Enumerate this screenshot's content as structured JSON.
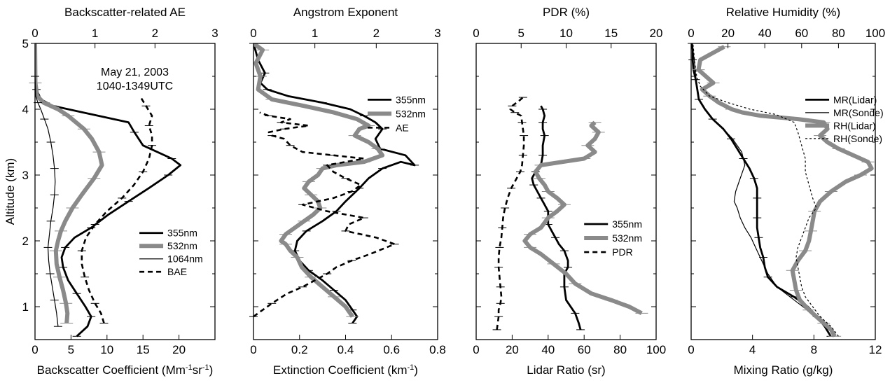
{
  "chart_data": [
    {
      "type": "line",
      "panel": "backscatter",
      "ylabel": "Altitude (km)",
      "ylim": [
        0.5,
        5
      ],
      "yticks": [
        1,
        2,
        3,
        4,
        5
      ],
      "bottom_axis": {
        "label_main": "Backscatter Coefficient (Mm",
        "sup1": "-1",
        "mid": "sr",
        "sup2": "-1",
        "close": ")",
        "lim": [
          0,
          25
        ],
        "ticks": [
          0,
          5,
          10,
          15,
          20
        ]
      },
      "top_axis": {
        "label": "Backscatter-related AE",
        "lim": [
          0,
          3
        ],
        "ticks": [
          0,
          1,
          2,
          3
        ]
      },
      "annotations": [
        "May 21, 2003",
        "1040-1349UTC"
      ],
      "legend_position": "lower-right",
      "series": [
        {
          "name": "355nm",
          "axis": "bottom",
          "style": "black-thick",
          "x": [
            5.8,
            7.3,
            7.8,
            7.0,
            5.8,
            4.6,
            3.9,
            3.7,
            4.2,
            5.5,
            7.8,
            10.2,
            13.0,
            15.8,
            18.5,
            20.2,
            19.0,
            15.0,
            13.8,
            13.0,
            2.5,
            0.8,
            0.2,
            0.05,
            0.0
          ],
          "y": [
            0.55,
            0.7,
            0.85,
            1.0,
            1.2,
            1.4,
            1.6,
            1.75,
            1.9,
            2.05,
            2.2,
            2.4,
            2.6,
            2.8,
            3.0,
            3.15,
            3.25,
            3.45,
            3.65,
            3.8,
            4.05,
            4.15,
            4.3,
            4.5,
            5.0
          ]
        },
        {
          "name": "532nm",
          "axis": "bottom",
          "style": "gray-thick",
          "x": [
            4.4,
            4.5,
            4.3,
            3.9,
            3.4,
            3.0,
            2.9,
            3.2,
            3.6,
            4.2,
            5.2,
            6.5,
            8.2,
            9.3,
            8.9,
            7.9,
            6.8,
            5.7,
            4.6,
            3.2,
            1.2,
            0.3,
            0.05,
            0.0
          ],
          "y": [
            0.75,
            0.9,
            1.05,
            1.25,
            1.45,
            1.65,
            1.85,
            2.0,
            2.15,
            2.3,
            2.5,
            2.7,
            2.95,
            3.15,
            3.35,
            3.55,
            3.7,
            3.8,
            3.9,
            4.0,
            4.1,
            4.2,
            4.4,
            5.0
          ]
        },
        {
          "name": "1064nm",
          "axis": "bottom",
          "style": "black-thin",
          "x": [
            3.2,
            3.0,
            2.7,
            2.4,
            2.1,
            1.9,
            1.8,
            2.0,
            2.2,
            2.5,
            2.7,
            2.8,
            2.7,
            2.5,
            2.2,
            1.8,
            1.3,
            0.8,
            0.4,
            0.1,
            0.0
          ],
          "y": [
            0.7,
            0.9,
            1.1,
            1.3,
            1.5,
            1.7,
            1.9,
            2.1,
            2.3,
            2.5,
            2.7,
            2.9,
            3.1,
            3.3,
            3.5,
            3.7,
            3.85,
            4.0,
            4.1,
            4.2,
            4.5
          ]
        },
        {
          "name": "BAE",
          "axis": "top",
          "style": "black-dashed",
          "x": [
            1.15,
            1.1,
            1.0,
            0.9,
            0.83,
            0.78,
            0.78,
            0.85,
            1.0,
            1.2,
            1.45,
            1.65,
            1.8,
            1.9,
            1.95,
            1.95,
            1.9,
            1.95,
            1.85,
            1.75
          ],
          "y": [
            0.75,
            0.9,
            1.05,
            1.25,
            1.45,
            1.65,
            1.85,
            2.05,
            2.25,
            2.45,
            2.65,
            2.85,
            3.05,
            3.25,
            3.45,
            3.6,
            3.75,
            3.9,
            4.05,
            4.2
          ]
        }
      ]
    },
    {
      "type": "line",
      "panel": "extinction",
      "ylim": [
        0.5,
        5
      ],
      "bottom_axis": {
        "label_main": "Extinction Coefficient (km",
        "sup1": "-1",
        "close": ")",
        "lim": [
          0,
          0.8
        ],
        "ticks": [
          0,
          0.2,
          0.4,
          0.6,
          0.8
        ]
      },
      "top_axis": {
        "label": "Angstrom Exponent",
        "lim": [
          0,
          3
        ],
        "ticks": [
          0,
          1,
          2,
          3
        ]
      },
      "legend_position": "upper-right",
      "series": [
        {
          "name": "355nm",
          "axis": "bottom",
          "style": "black-thick",
          "x": [
            0.43,
            0.45,
            0.43,
            0.4,
            0.35,
            0.3,
            0.24,
            0.2,
            0.18,
            0.19,
            0.23,
            0.3,
            0.36,
            0.4,
            0.46,
            0.5,
            0.56,
            0.64,
            0.7,
            0.66,
            0.55,
            0.53,
            0.56,
            0.53,
            0.48,
            0.42,
            0.3,
            0.15,
            0.06,
            0.03,
            0.05,
            0.02,
            0.0
          ],
          "y": [
            0.75,
            0.85,
            0.95,
            1.1,
            1.25,
            1.4,
            1.55,
            1.7,
            1.85,
            2.0,
            2.15,
            2.3,
            2.45,
            2.6,
            2.8,
            2.95,
            3.1,
            3.2,
            3.15,
            3.3,
            3.4,
            3.55,
            3.7,
            3.8,
            3.9,
            4.0,
            4.1,
            4.2,
            4.3,
            4.4,
            4.55,
            4.75,
            5.0
          ]
        },
        {
          "name": "532nm",
          "axis": "bottom",
          "style": "gray-thick",
          "x": [
            0.43,
            0.4,
            0.35,
            0.3,
            0.25,
            0.21,
            0.19,
            0.16,
            0.14,
            0.12,
            0.14,
            0.18,
            0.22,
            0.26,
            0.29,
            0.28,
            0.25,
            0.22,
            0.24,
            0.28,
            0.3,
            0.36,
            0.48,
            0.56,
            0.54,
            0.5,
            0.44,
            0.46,
            0.5,
            0.45,
            0.35,
            0.22,
            0.08,
            0.02,
            0.03,
            0.01,
            0.04,
            0.0
          ],
          "y": [
            0.85,
            1.0,
            1.15,
            1.3,
            1.45,
            1.6,
            1.75,
            1.85,
            1.95,
            2.0,
            2.1,
            2.2,
            2.3,
            2.4,
            2.5,
            2.6,
            2.7,
            2.8,
            2.9,
            3.0,
            3.1,
            3.15,
            3.2,
            3.3,
            3.4,
            3.5,
            3.6,
            3.7,
            3.75,
            3.85,
            3.95,
            4.05,
            4.15,
            4.3,
            4.5,
            4.7,
            4.9,
            5.0
          ]
        },
        {
          "name": "AE",
          "axis": "top",
          "style": "black-dashed",
          "x": [
            0.0,
            0.15,
            0.3,
            0.55,
            0.8,
            1.0,
            1.2,
            1.35,
            1.6,
            1.9,
            2.3,
            2.0,
            1.5,
            1.55,
            1.8,
            1.2,
            0.8,
            1.3,
            1.6,
            1.75,
            1.5,
            1.3,
            1.2,
            1.8,
            1.3,
            0.8,
            0.6,
            0.5,
            0.3,
            0.25,
            0.5,
            0.9,
            0.45,
            0.6,
            0.25,
            0.1
          ],
          "y": [
            0.85,
            0.95,
            1.05,
            1.2,
            1.3,
            1.4,
            1.5,
            1.6,
            1.7,
            1.8,
            1.95,
            2.05,
            2.15,
            2.25,
            2.35,
            2.45,
            2.55,
            2.65,
            2.75,
            2.85,
            2.95,
            3.05,
            3.15,
            3.25,
            3.3,
            3.35,
            3.45,
            3.55,
            3.6,
            3.65,
            3.7,
            3.75,
            3.8,
            3.85,
            3.9,
            3.95
          ]
        }
      ]
    },
    {
      "type": "line",
      "panel": "lidar-ratio",
      "ylim": [
        0.5,
        5
      ],
      "bottom_axis": {
        "label_main": "Lidar Ratio (sr)",
        "lim": [
          0,
          100
        ],
        "ticks": [
          0,
          20,
          40,
          60,
          80,
          100
        ]
      },
      "top_axis": {
        "label": "PDR (%)",
        "lim": [
          0,
          20
        ],
        "ticks": [
          0,
          5,
          10,
          15,
          20
        ]
      },
      "legend_position": "center-right",
      "series": [
        {
          "name": "355nm",
          "axis": "bottom",
          "style": "black-thick",
          "x": [
            58,
            57,
            55,
            50,
            49,
            49,
            51,
            51,
            49,
            46,
            44,
            42,
            40,
            40,
            40,
            38,
            36,
            34,
            32,
            31,
            33,
            36,
            37,
            37,
            38,
            37,
            37,
            38,
            37,
            36
          ],
          "y": [
            0.65,
            0.75,
            0.9,
            1.1,
            1.3,
            1.5,
            1.6,
            1.7,
            1.85,
            1.95,
            2.05,
            2.15,
            2.25,
            2.35,
            2.45,
            2.55,
            2.65,
            2.75,
            2.85,
            2.95,
            3.05,
            3.15,
            3.3,
            3.45,
            3.6,
            3.7,
            3.8,
            3.9,
            4.0,
            4.05
          ]
        },
        {
          "name": "532nm",
          "axis": "bottom",
          "style": "gray-thick",
          "x": [
            92,
            85,
            75,
            64,
            55,
            50,
            43,
            36,
            30,
            27,
            30,
            36,
            40,
            45,
            49,
            45,
            40,
            38,
            35,
            33,
            36,
            48,
            60,
            66,
            62,
            66,
            68,
            64,
            66
          ],
          "y": [
            0.9,
            1.0,
            1.1,
            1.2,
            1.35,
            1.5,
            1.65,
            1.8,
            1.9,
            2.0,
            2.1,
            2.2,
            2.35,
            2.45,
            2.55,
            2.65,
            2.75,
            2.85,
            2.95,
            3.05,
            3.15,
            3.2,
            3.25,
            3.35,
            3.45,
            3.55,
            3.65,
            3.75,
            3.8
          ]
        },
        {
          "name": "PDR",
          "axis": "top",
          "style": "black-dashed",
          "x": [
            2.3,
            2.4,
            2.5,
            2.5,
            2.7,
            2.8,
            2.7,
            2.6,
            2.5,
            2.5,
            2.6,
            2.8,
            2.9,
            3.0,
            3.2,
            3.5,
            3.9,
            4.5,
            4.9,
            5.1,
            5.2,
            5.3,
            5.3,
            5.2,
            5.1,
            5.0,
            4.3,
            3.8,
            4.0,
            4.7,
            5.2
          ],
          "y": [
            0.65,
            0.75,
            0.85,
            0.95,
            1.05,
            1.15,
            1.3,
            1.45,
            1.6,
            1.75,
            1.9,
            2.05,
            2.2,
            2.35,
            2.5,
            2.65,
            2.8,
            2.95,
            3.05,
            3.15,
            3.3,
            3.45,
            3.6,
            3.7,
            3.8,
            3.9,
            3.95,
            4.0,
            4.05,
            4.12,
            4.18
          ]
        }
      ]
    },
    {
      "type": "line",
      "panel": "humidity",
      "ylim": [
        0.5,
        5
      ],
      "bottom_axis": {
        "label_main": "Mixing Ratio (g/kg)",
        "lim": [
          0,
          12
        ],
        "ticks": [
          0,
          4,
          8,
          12
        ]
      },
      "top_axis": {
        "label": "Relative Humidity (%)",
        "lim": [
          0,
          100
        ],
        "ticks": [
          0,
          20,
          40,
          60,
          80,
          100
        ]
      },
      "legend_position": "upper-right",
      "series": [
        {
          "name": "MR(Lidar)",
          "axis": "bottom",
          "style": "black-thick",
          "x": [
            9.1,
            8.7,
            8.2,
            7.6,
            6.7,
            5.6,
            5.0,
            4.8,
            4.7,
            4.5,
            4.4,
            4.3,
            4.3,
            4.3,
            4.3,
            4.3,
            4.1,
            3.8,
            3.4,
            3.0,
            2.6,
            2.1,
            1.4,
            0.9,
            0.5,
            0.4,
            0.3,
            0.15,
            0.1,
            0.1,
            0.05
          ],
          "y": [
            0.55,
            0.7,
            0.85,
            1.0,
            1.15,
            1.3,
            1.45,
            1.6,
            1.75,
            1.9,
            2.05,
            2.2,
            2.35,
            2.5,
            2.65,
            2.8,
            2.95,
            3.1,
            3.25,
            3.4,
            3.55,
            3.7,
            3.85,
            4.0,
            4.15,
            4.3,
            4.45,
            4.6,
            4.75,
            4.9,
            5.0
          ]
        },
        {
          "name": "MR(Sonde)",
          "axis": "bottom",
          "style": "black-thin",
          "x": [
            9.4,
            8.4,
            7.0,
            5.6,
            5.0,
            4.6,
            4.2,
            3.9,
            3.5,
            3.2,
            3.0,
            2.8,
            2.9,
            3.2,
            3.5,
            3.3,
            2.7,
            2.1,
            1.4,
            0.9,
            0.5,
            0.4,
            0.3,
            0.2,
            0.05
          ],
          "y": [
            0.55,
            0.8,
            1.05,
            1.3,
            1.5,
            1.7,
            1.9,
            2.05,
            2.2,
            2.35,
            2.5,
            2.6,
            2.75,
            2.95,
            3.15,
            3.35,
            3.55,
            3.7,
            3.85,
            4.0,
            4.15,
            4.3,
            4.5,
            4.75,
            5.0
          ]
        },
        {
          "name": "RH(Lidar)",
          "axis": "top",
          "style": "gray-thick",
          "x": [
            78,
            76,
            72,
            68,
            64,
            59,
            57,
            56,
            55,
            58,
            62,
            64,
            65,
            66,
            67,
            70,
            76,
            84,
            92,
            98,
            96,
            88,
            80,
            74,
            70,
            74,
            72,
            58,
            38,
            28,
            22,
            15,
            10,
            6,
            12,
            8,
            4,
            5,
            18
          ],
          "y": [
            0.55,
            0.65,
            0.75,
            0.85,
            0.95,
            1.1,
            1.25,
            1.4,
            1.55,
            1.7,
            1.85,
            2.0,
            2.15,
            2.3,
            2.45,
            2.6,
            2.75,
            2.9,
            3.0,
            3.1,
            3.2,
            3.3,
            3.4,
            3.5,
            3.6,
            3.7,
            3.8,
            3.85,
            3.9,
            3.95,
            4.0,
            4.1,
            4.2,
            4.3,
            4.4,
            4.5,
            4.6,
            4.75,
            4.95
          ]
        },
        {
          "name": "RH(Sonde)",
          "axis": "top",
          "style": "black-dotted",
          "x": [
            80,
            76,
            70,
            66,
            62,
            60,
            59,
            58,
            57,
            58,
            60,
            62,
            64,
            68,
            66,
            64,
            62,
            62,
            60,
            58,
            56,
            46,
            32,
            20,
            10,
            5,
            3,
            2,
            1
          ],
          "y": [
            0.55,
            0.7,
            0.85,
            1.0,
            1.15,
            1.3,
            1.45,
            1.6,
            1.75,
            1.9,
            2.05,
            2.2,
            2.35,
            2.5,
            2.65,
            2.85,
            3.05,
            3.25,
            3.45,
            3.65,
            3.8,
            3.92,
            4.0,
            4.1,
            4.2,
            4.35,
            4.5,
            4.7,
            5.0
          ]
        }
      ]
    }
  ]
}
